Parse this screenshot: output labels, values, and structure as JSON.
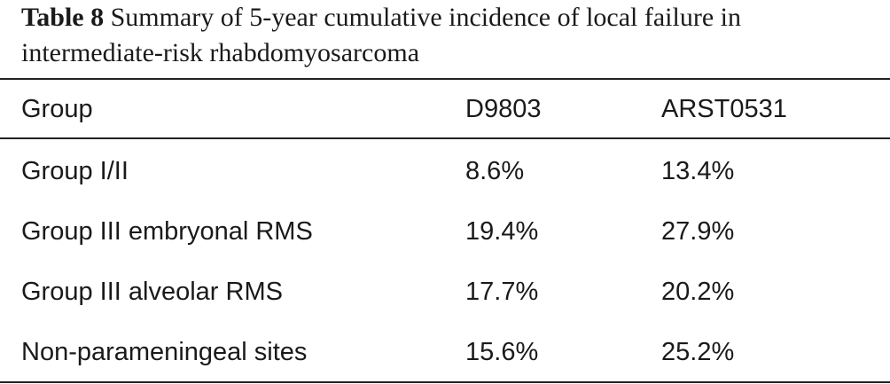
{
  "table": {
    "caption_label": "Table 8",
    "caption_text": "Summary of 5-year cumulative incidence of local failure in intermediate-risk rhabdomyosarcoma",
    "columns": [
      "Group",
      "D9803",
      "ARST0531"
    ],
    "rows": [
      [
        "Group I/II",
        "8.6%",
        "13.4%"
      ],
      [
        "Group III embryonal RMS",
        "19.4%",
        "27.9%"
      ],
      [
        "Group III alveolar RMS",
        "17.7%",
        "20.2%"
      ],
      [
        "Non-parameningeal sites",
        "15.6%",
        "25.2%"
      ]
    ]
  }
}
